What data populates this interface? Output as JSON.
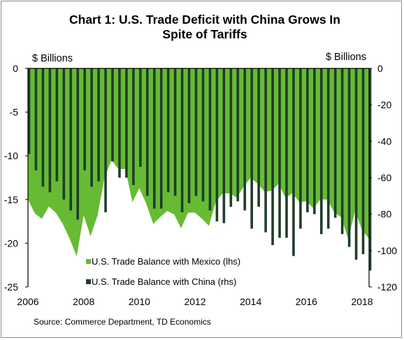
{
  "chart_data": {
    "type": "area+bar",
    "title_lines": [
      "Chart 1: U.S. Trade Deficit with China Grows In",
      "Spite of Tariffs"
    ],
    "ylabel_left": "$ Billions",
    "ylabel_right": "$ Billions",
    "y_left_range": [
      -25,
      0
    ],
    "y_right_range": [
      -120,
      0
    ],
    "y_left_ticks": [
      "0",
      "-5",
      "-10",
      "-15",
      "-20",
      "-25"
    ],
    "y_right_ticks": [
      "0",
      "-20",
      "-40",
      "-60",
      "-80",
      "-100",
      "-120"
    ],
    "x_ticks": [
      "2006",
      "2008",
      "2010",
      "2012",
      "2014",
      "2016",
      "2018"
    ],
    "x_range": [
      2006,
      2018.25
    ],
    "grid": false,
    "legend_position": "bottom-left",
    "series": [
      {
        "name": "U.S. Trade Balance with Mexico (lhs)",
        "type": "area",
        "axis": "left",
        "color": "#66bb33",
        "x": [
          2006.0,
          2006.25,
          2006.5,
          2006.75,
          2007.0,
          2007.25,
          2007.5,
          2007.75,
          2008.0,
          2008.25,
          2008.5,
          2008.75,
          2009.0,
          2009.25,
          2009.5,
          2009.75,
          2010.0,
          2010.25,
          2010.5,
          2010.75,
          2011.0,
          2011.25,
          2011.5,
          2011.75,
          2012.0,
          2012.25,
          2012.5,
          2012.75,
          2013.0,
          2013.25,
          2013.5,
          2013.75,
          2014.0,
          2014.25,
          2014.5,
          2014.75,
          2015.0,
          2015.25,
          2015.5,
          2015.75,
          2016.0,
          2016.25,
          2016.5,
          2016.75,
          2017.0,
          2017.25,
          2017.5,
          2017.75,
          2018.0,
          2018.25
        ],
        "values": [
          -15,
          -16.6,
          -17.2,
          -15.8,
          -16.5,
          -17.8,
          -19.5,
          -21.5,
          -16.8,
          -19.2,
          -16.8,
          -12.5,
          -10.5,
          -11.5,
          -11.5,
          -15.3,
          -13.7,
          -15.5,
          -17.8,
          -17,
          -16.3,
          -16.7,
          -18.3,
          -16.5,
          -16.5,
          -17.2,
          -18,
          -15.2,
          -14.3,
          -14.3,
          -14.8,
          -13.5,
          -12.5,
          -13.2,
          -14.1,
          -14,
          -13.2,
          -14.8,
          -14.3,
          -15.3,
          -15.2,
          -16,
          -15,
          -15,
          -16.5,
          -17,
          -19.5,
          -16.3,
          -18.5,
          -19.5
        ]
      },
      {
        "name": "U.S. Trade Balance with China (rhs)",
        "type": "bar",
        "axis": "right",
        "color": "#1f3d2b",
        "x": [
          2006.0,
          2006.25,
          2006.5,
          2006.75,
          2007.0,
          2007.25,
          2007.5,
          2007.75,
          2008.0,
          2008.25,
          2008.5,
          2008.75,
          2009.0,
          2009.25,
          2009.5,
          2009.75,
          2010.0,
          2010.25,
          2010.5,
          2010.75,
          2011.0,
          2011.25,
          2011.5,
          2011.75,
          2012.0,
          2012.25,
          2012.5,
          2012.75,
          2013.0,
          2013.25,
          2013.5,
          2013.75,
          2014.0,
          2014.25,
          2014.5,
          2014.75,
          2015.0,
          2015.25,
          2015.5,
          2015.75,
          2016.0,
          2016.25,
          2016.5,
          2016.75,
          2017.0,
          2017.25,
          2017.5,
          2017.75,
          2018.0,
          2018.25
        ],
        "values": [
          -47,
          -56,
          -65,
          -68,
          -62,
          -72,
          -78,
          -83,
          -56,
          -65,
          -62,
          -79,
          -51,
          -60,
          -60,
          -64,
          -54,
          -70,
          -77,
          -77,
          -68,
          -70,
          -79,
          -74,
          -70,
          -73,
          -78,
          -84,
          -85,
          -76,
          -73,
          -78,
          -88,
          -76,
          -90,
          -97,
          -93,
          -93,
          -103,
          -88,
          -79,
          -80,
          -91,
          -88,
          -82,
          -91,
          -98,
          -105,
          -102,
          -111
        ]
      }
    ],
    "source": "Source: Commerce Department, TD Economics"
  }
}
